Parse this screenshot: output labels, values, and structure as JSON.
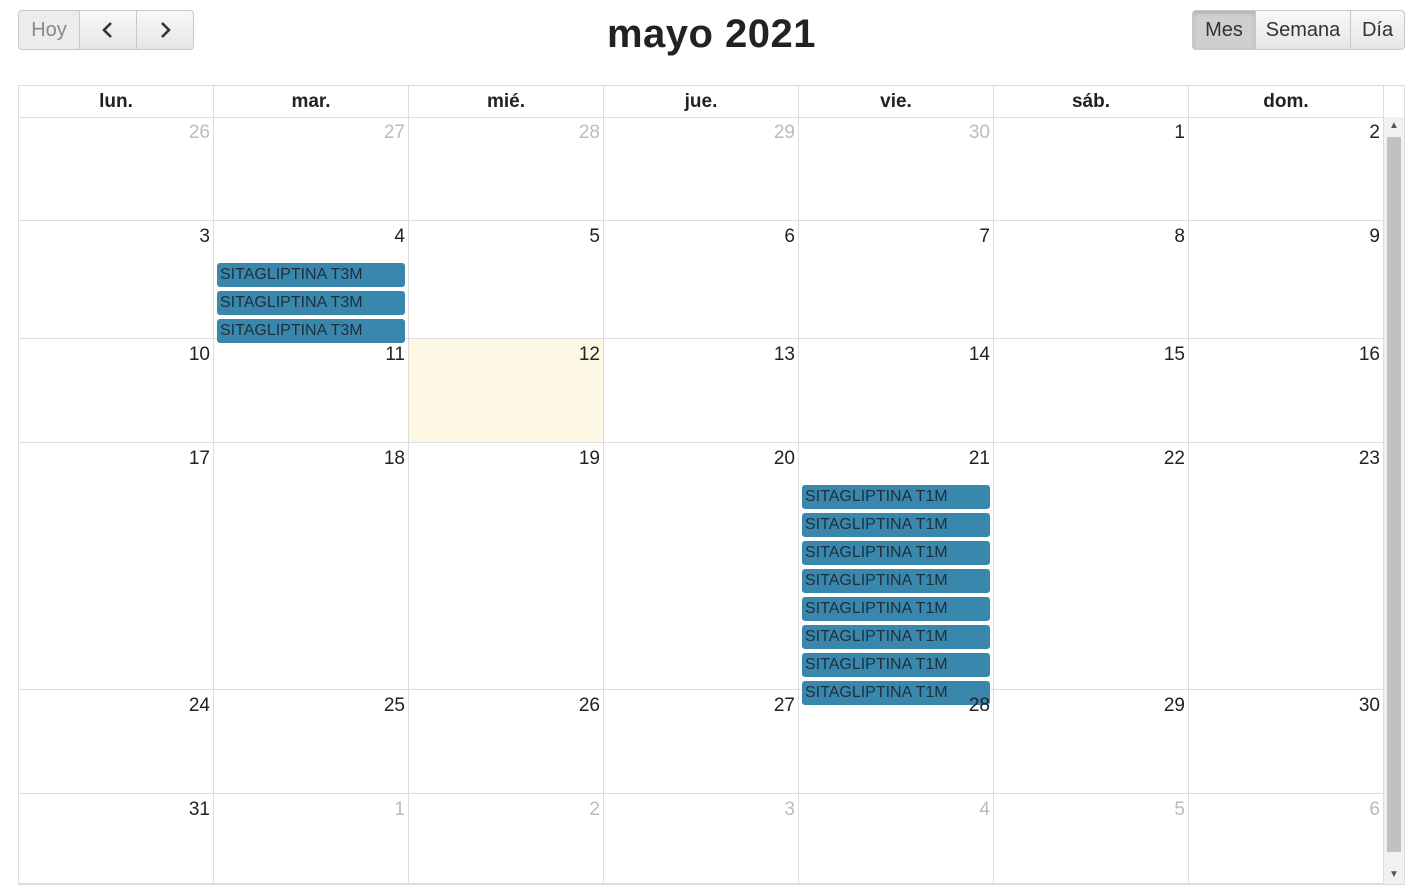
{
  "toolbar": {
    "today_label": "Hoy",
    "prev_icon": "‹",
    "next_icon": "›",
    "title": "mayo 2021",
    "views": [
      {
        "label": "Mes",
        "active": true
      },
      {
        "label": "Semana",
        "active": false
      },
      {
        "label": "Día",
        "active": false
      }
    ]
  },
  "weekdays": [
    "lun.",
    "mar.",
    "mié.",
    "jue.",
    "vie.",
    "sáb.",
    "dom."
  ],
  "weeks": [
    {
      "days": [
        {
          "num": "26",
          "other": true
        },
        {
          "num": "27",
          "other": true
        },
        {
          "num": "28",
          "other": true
        },
        {
          "num": "29",
          "other": true
        },
        {
          "num": "30",
          "other": true
        },
        {
          "num": "1"
        },
        {
          "num": "2"
        }
      ]
    },
    {
      "days": [
        {
          "num": "3"
        },
        {
          "num": "4",
          "events": [
            "SITAGLIPTINA T3M",
            "SITAGLIPTINA T3M",
            "SITAGLIPTINA T3M"
          ]
        },
        {
          "num": "5"
        },
        {
          "num": "6"
        },
        {
          "num": "7"
        },
        {
          "num": "8"
        },
        {
          "num": "9"
        }
      ]
    },
    {
      "days": [
        {
          "num": "10"
        },
        {
          "num": "11"
        },
        {
          "num": "12",
          "today": true
        },
        {
          "num": "13"
        },
        {
          "num": "14"
        },
        {
          "num": "15"
        },
        {
          "num": "16"
        }
      ]
    },
    {
      "days": [
        {
          "num": "17"
        },
        {
          "num": "18"
        },
        {
          "num": "19"
        },
        {
          "num": "20"
        },
        {
          "num": "21",
          "events": [
            "SITAGLIPTINA T1M",
            "SITAGLIPTINA T1M",
            "SITAGLIPTINA T1M",
            "SITAGLIPTINA T1M",
            "SITAGLIPTINA T1M",
            "SITAGLIPTINA T1M",
            "SITAGLIPTINA T1M",
            "SITAGLIPTINA T1M"
          ]
        },
        {
          "num": "22"
        },
        {
          "num": "23"
        }
      ]
    },
    {
      "days": [
        {
          "num": "24"
        },
        {
          "num": "25"
        },
        {
          "num": "26"
        },
        {
          "num": "27"
        },
        {
          "num": "28"
        },
        {
          "num": "29"
        },
        {
          "num": "30"
        }
      ]
    },
    {
      "days": [
        {
          "num": "31"
        },
        {
          "num": "1",
          "other": true
        },
        {
          "num": "2",
          "other": true
        },
        {
          "num": "3",
          "other": true
        },
        {
          "num": "4",
          "other": true
        },
        {
          "num": "5",
          "other": true
        },
        {
          "num": "6",
          "other": true
        }
      ]
    }
  ],
  "colors": {
    "event": "#3a87ad",
    "today": "#fcf8e3"
  }
}
